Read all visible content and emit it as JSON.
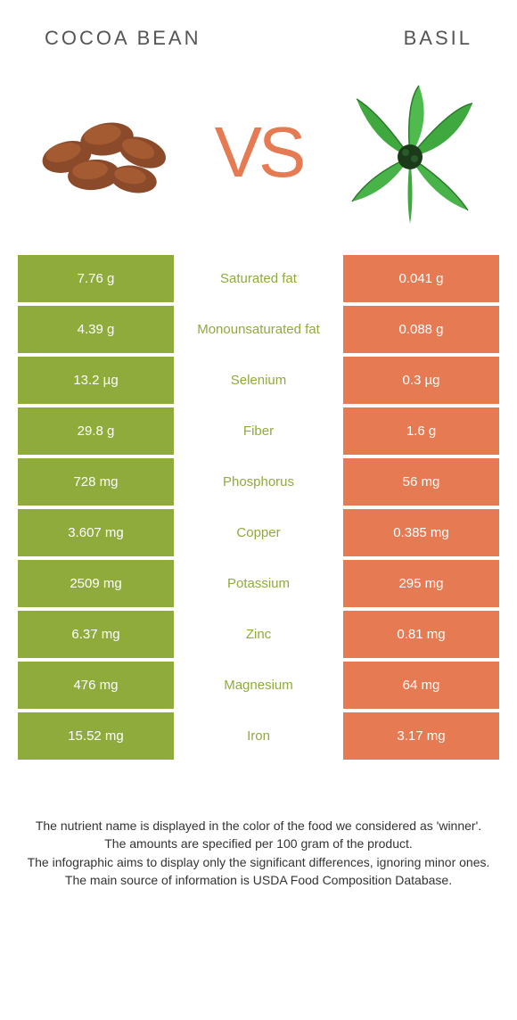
{
  "header": {
    "left_title": "Cocoa bean",
    "right_title": "Basil"
  },
  "vs": "VS",
  "colors": {
    "left_bg": "#8fab3c",
    "right_bg": "#e67a52",
    "mid_bg": "#ffffff",
    "left_label_color": "#8fab3c",
    "right_label_color": "#e67a52",
    "cell_text": "#ffffff"
  },
  "rows": [
    {
      "left": "7.76 g",
      "label": "Saturated fat",
      "right": "0.041 g",
      "winner": "left"
    },
    {
      "left": "4.39 g",
      "label": "Monounsaturated fat",
      "right": "0.088 g",
      "winner": "left"
    },
    {
      "left": "13.2 µg",
      "label": "Selenium",
      "right": "0.3 µg",
      "winner": "left"
    },
    {
      "left": "29.8 g",
      "label": "Fiber",
      "right": "1.6 g",
      "winner": "left"
    },
    {
      "left": "728 mg",
      "label": "Phosphorus",
      "right": "56 mg",
      "winner": "left"
    },
    {
      "left": "3.607 mg",
      "label": "Copper",
      "right": "0.385 mg",
      "winner": "left"
    },
    {
      "left": "2509 mg",
      "label": "Potassium",
      "right": "295 mg",
      "winner": "left"
    },
    {
      "left": "6.37 mg",
      "label": "Zinc",
      "right": "0.81 mg",
      "winner": "left"
    },
    {
      "left": "476 mg",
      "label": "Magnesium",
      "right": "64 mg",
      "winner": "left"
    },
    {
      "left": "15.52 mg",
      "label": "Iron",
      "right": "3.17 mg",
      "winner": "left"
    }
  ],
  "footer": {
    "line1": "The nutrient name is displayed in the color of the food we considered as 'winner'.",
    "line2": "The amounts are specified per 100 gram of the product.",
    "line3": "The infographic aims to display only the significant differences, ignoring minor ones.",
    "line4": "The main source of information is USDA Food Composition Database."
  }
}
